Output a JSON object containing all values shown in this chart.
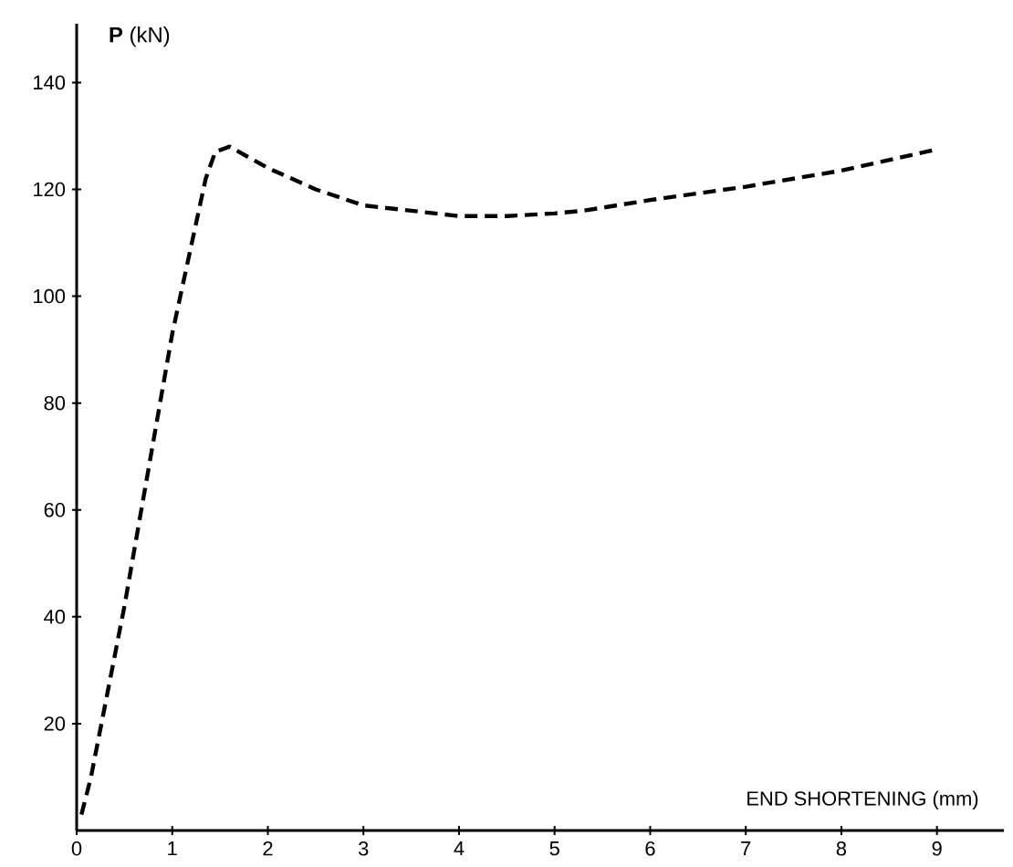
{
  "chart_data": {
    "type": "line",
    "xlabel": "END SHORTENING (mm)",
    "ylabel": "**P** (kN)",
    "x": [
      0.05,
      0.15,
      0.5,
      1.0,
      1.35,
      1.45,
      1.6,
      2.0,
      2.5,
      3.0,
      3.5,
      4.0,
      4.5,
      5.0,
      5.3,
      6.0,
      7.0,
      8.0,
      9.0
    ],
    "values": [
      3,
      10,
      42,
      93,
      122,
      127,
      128,
      124,
      120,
      117,
      116,
      115,
      115,
      115.5,
      116,
      118,
      120.5,
      123.5,
      127.5
    ],
    "color": "#000000",
    "xlim": [
      0,
      9.7
    ],
    "ylim": [
      0,
      151
    ],
    "xticks": [
      0,
      1,
      2,
      3,
      4,
      5,
      6,
      7,
      8,
      9
    ],
    "yticks": [
      20,
      40,
      60,
      80,
      100,
      120,
      140
    ],
    "grid": false,
    "marker": "none",
    "line_style": "dashed"
  }
}
